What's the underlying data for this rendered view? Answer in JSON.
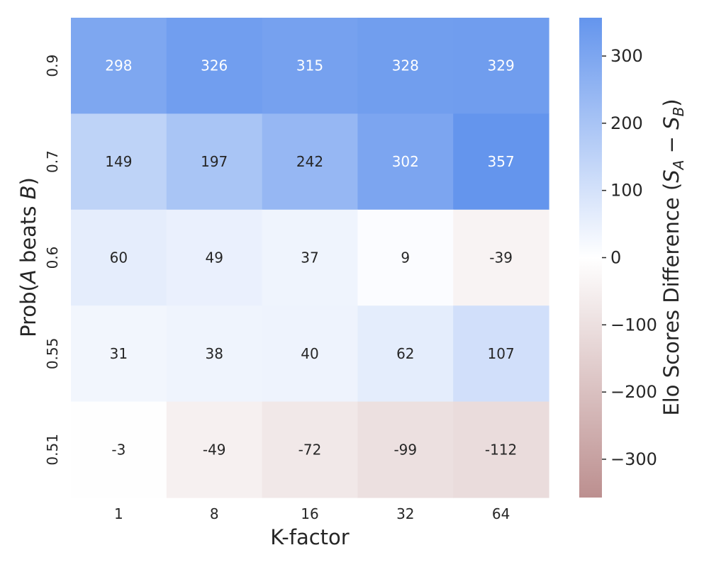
{
  "chart_data": {
    "type": "heatmap",
    "x_categories": [
      "1",
      "8",
      "16",
      "32",
      "64"
    ],
    "y_categories": [
      "0.9",
      "0.7",
      "0.6",
      "0.55",
      "0.51"
    ],
    "values": [
      [
        298,
        326,
        315,
        328,
        329
      ],
      [
        149,
        197,
        242,
        302,
        357
      ],
      [
        60,
        49,
        37,
        9,
        -39
      ],
      [
        31,
        38,
        40,
        62,
        107
      ],
      [
        -3,
        -49,
        -72,
        -99,
        -112
      ]
    ],
    "xlabel": "K-factor",
    "ylabel": {
      "prefix": "Prob(",
      "var_a": "A",
      "middle": " beats ",
      "var_b": "B",
      "suffix": ")"
    },
    "colorbar": {
      "label": {
        "prefix": "Elo Scores Difference (",
        "s1": "S",
        "s1_sub": "A",
        "op": " − ",
        "s2": "S",
        "s2_sub": "B",
        "suffix": ")"
      },
      "ticks": [
        300,
        200,
        100,
        0,
        -100,
        -200,
        -300
      ],
      "tick_labels": [
        "300",
        "200",
        "100",
        "0",
        "−100",
        "−200",
        "−300"
      ],
      "vmin": -357,
      "vmax": 357
    },
    "colormap": {
      "positive": "#6495ed",
      "center": "#ffffff",
      "negative": "#bc8f8f"
    }
  }
}
